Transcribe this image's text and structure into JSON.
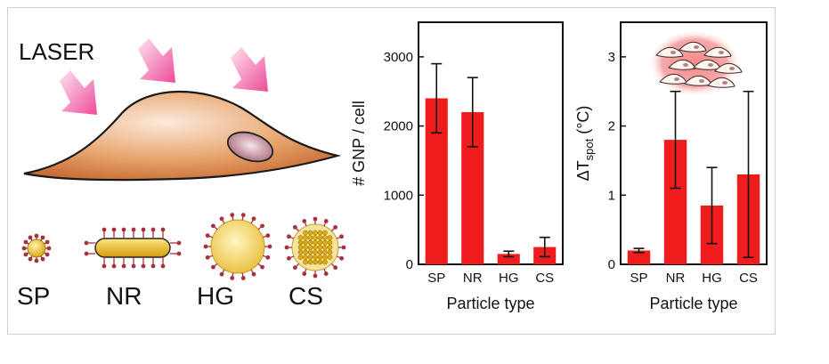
{
  "illustration": {
    "laser_label": "LASER",
    "particle_labels": [
      "SP",
      "NR",
      "HG",
      "CS"
    ],
    "colors": {
      "laser_arrow": "#f05aa0",
      "cell": "#c97a45",
      "particle": "#e8b820",
      "ligand": "#a8323c"
    }
  },
  "chart_data": [
    {
      "type": "bar",
      "categories": [
        "SP",
        "NR",
        "HG",
        "CS"
      ],
      "values": [
        2400,
        2200,
        150,
        250
      ],
      "errors": [
        500,
        500,
        40,
        140
      ],
      "xlabel": "Particle type",
      "ylabel": "# GNP / cell",
      "ylim": [
        0,
        3500
      ],
      "yticks": [
        0,
        1000,
        2000,
        3000
      ],
      "bar_color": "#ee1c1c",
      "grid": false
    },
    {
      "type": "bar",
      "categories": [
        "SP",
        "NR",
        "HG",
        "CS"
      ],
      "values": [
        0.2,
        1.8,
        0.85,
        1.3
      ],
      "errors": [
        0.03,
        0.7,
        0.55,
        1.2
      ],
      "xlabel": "Particle type",
      "ylabel_prefix": "ΔT",
      "ylabel_sub": "spot",
      "ylabel_suffix": " (°C)",
      "ylim": [
        0,
        3.5
      ],
      "yticks": [
        0,
        1,
        2,
        3
      ],
      "bar_color": "#ee1c1c",
      "grid": false
    }
  ]
}
